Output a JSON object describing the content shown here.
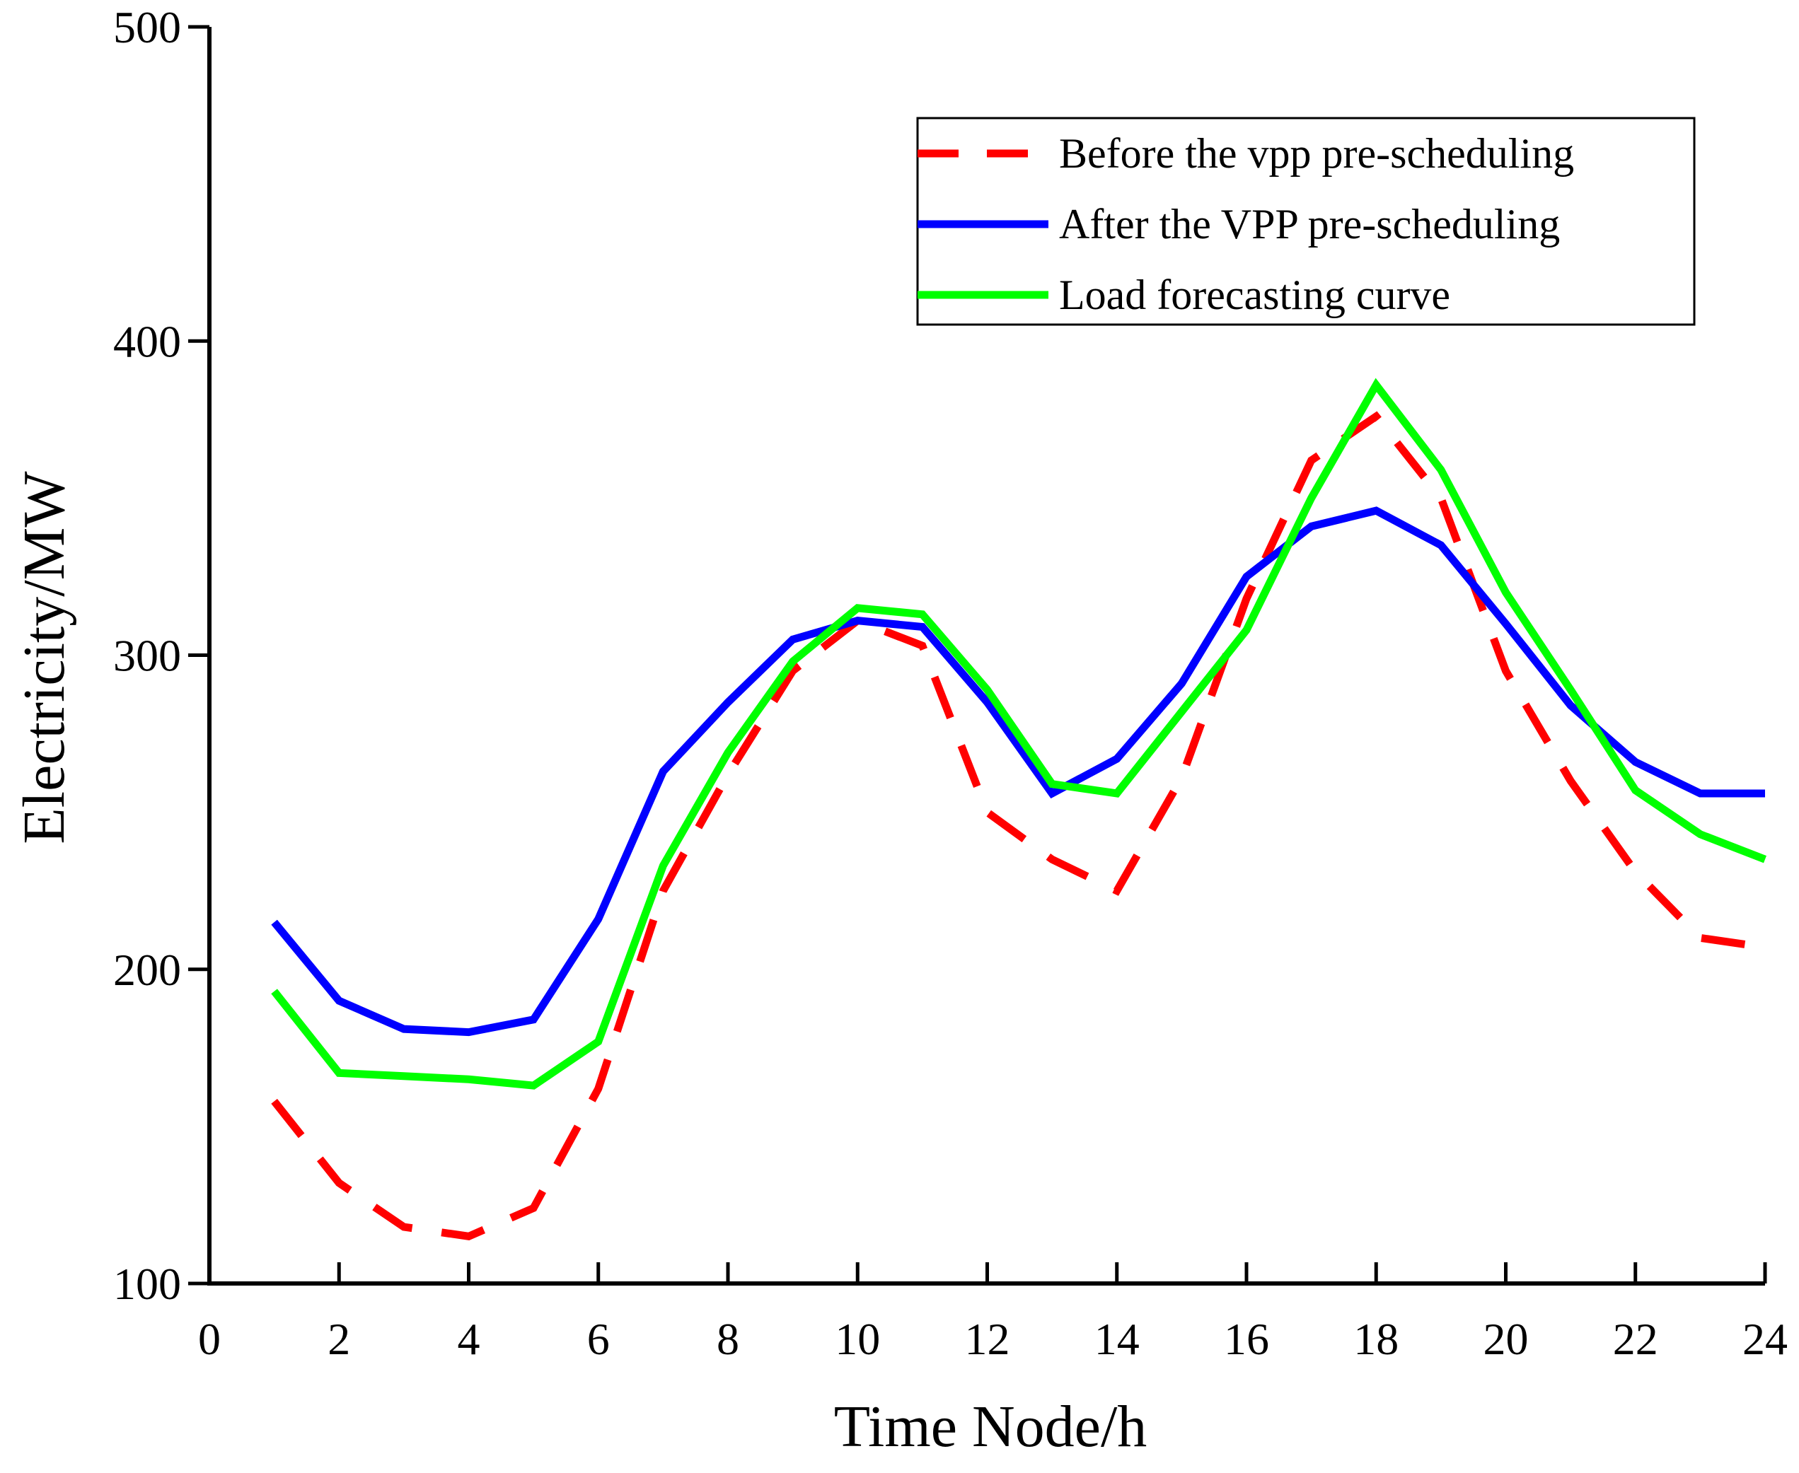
{
  "chart_data": {
    "type": "line",
    "title": "",
    "xlabel": "Time Node/h",
    "ylabel": "Electricity/MW",
    "xlim": [
      0,
      24
    ],
    "ylim": [
      100,
      500
    ],
    "xticks": [
      0,
      2,
      4,
      6,
      8,
      10,
      12,
      14,
      16,
      18,
      20,
      22,
      24
    ],
    "yticks": [
      100,
      200,
      300,
      400,
      500
    ],
    "grid": false,
    "legend_position": "top-right",
    "x": [
      1,
      2,
      3,
      4,
      5,
      6,
      7,
      8,
      9,
      10,
      11,
      12,
      13,
      14,
      15,
      16,
      17,
      18,
      19,
      20,
      21,
      22,
      23,
      24
    ],
    "series": [
      {
        "name": "Before the vpp pre-scheduling",
        "color": "#ff0000",
        "style": "dashed",
        "values": [
          158,
          132,
          118,
          115,
          124,
          162,
          225,
          262,
          295,
          311,
          303,
          250,
          235,
          225,
          261,
          318,
          362,
          376,
          350,
          295,
          260,
          231,
          210,
          207
        ]
      },
      {
        "name": "After the VPP pre-scheduling",
        "color": "#0000ff",
        "style": "solid",
        "values": [
          215,
          190,
          181,
          180,
          184,
          216,
          263,
          285,
          305,
          311,
          309,
          285,
          256,
          267,
          291,
          325,
          341,
          346,
          335,
          310,
          284,
          266,
          256,
          256
        ]
      },
      {
        "name": "Load forecasting curve",
        "color": "#00ff00",
        "style": "solid",
        "values": [
          193,
          167,
          166,
          165,
          163,
          177,
          233,
          269,
          298,
          315,
          313,
          289,
          259,
          256,
          282,
          308,
          350,
          386,
          359,
          320,
          289,
          257,
          243,
          235
        ]
      }
    ]
  }
}
